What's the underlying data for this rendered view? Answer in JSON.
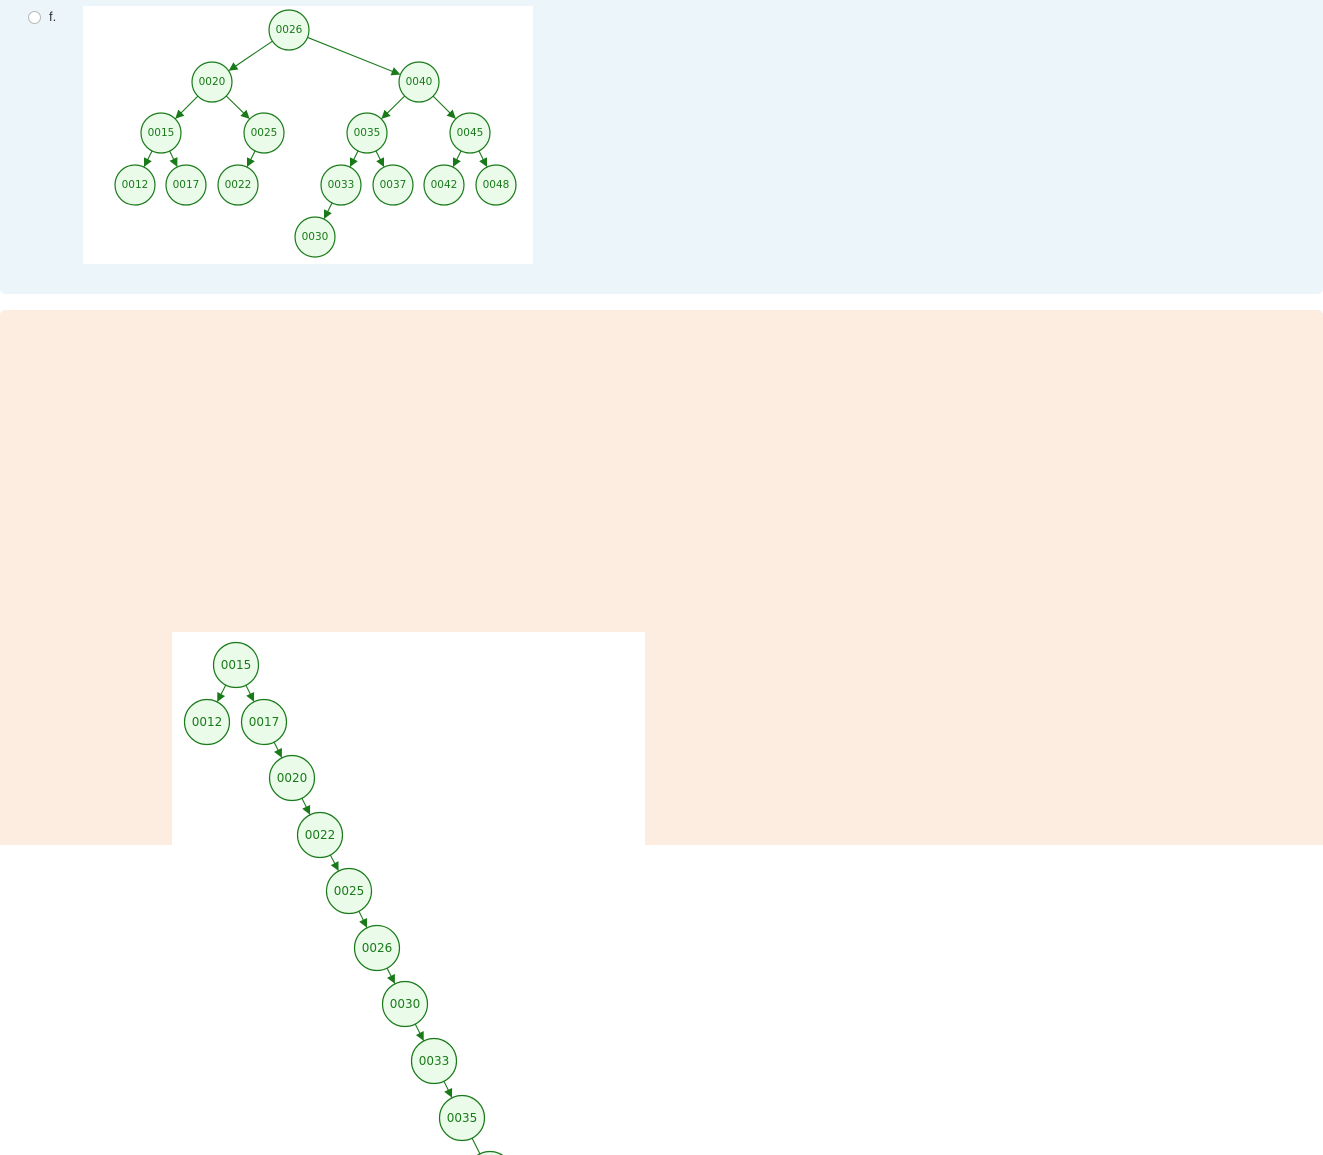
{
  "option": {
    "label": "f."
  },
  "colors": {
    "top_panel_bg": "#ecf6fa",
    "bottom_panel_bg": "#fcede0",
    "node_fill": "#eafbea",
    "node_stroke": "#1a7a1a"
  },
  "tree_top": {
    "nodes": [
      "0026",
      "0020",
      "0040",
      "0015",
      "0025",
      "0035",
      "0045",
      "0012",
      "0017",
      "0022",
      "0033",
      "0037",
      "0042",
      "0048",
      "0030"
    ],
    "edges": [
      [
        "0026",
        "0020"
      ],
      [
        "0026",
        "0040"
      ],
      [
        "0020",
        "0015"
      ],
      [
        "0020",
        "0025"
      ],
      [
        "0040",
        "0035"
      ],
      [
        "0040",
        "0045"
      ],
      [
        "0015",
        "0012"
      ],
      [
        "0015",
        "0017"
      ],
      [
        "0025",
        "0022"
      ],
      [
        "0035",
        "0033"
      ],
      [
        "0035",
        "0037"
      ],
      [
        "0045",
        "0042"
      ],
      [
        "0045",
        "0048"
      ],
      [
        "0033",
        "0030"
      ]
    ]
  },
  "tree_bottom": {
    "nodes": [
      "0015",
      "0012",
      "0017",
      "0020",
      "0022",
      "0025",
      "0026",
      "0030",
      "0033",
      "0035"
    ],
    "edges": [
      [
        "0015",
        "0012"
      ],
      [
        "0015",
        "0017"
      ],
      [
        "0017",
        "0020"
      ],
      [
        "0020",
        "0022"
      ],
      [
        "0022",
        "0025"
      ],
      [
        "0025",
        "0026"
      ],
      [
        "0026",
        "0030"
      ],
      [
        "0030",
        "0033"
      ],
      [
        "0033",
        "0035"
      ],
      [
        "0035",
        "__offscreen"
      ]
    ]
  }
}
